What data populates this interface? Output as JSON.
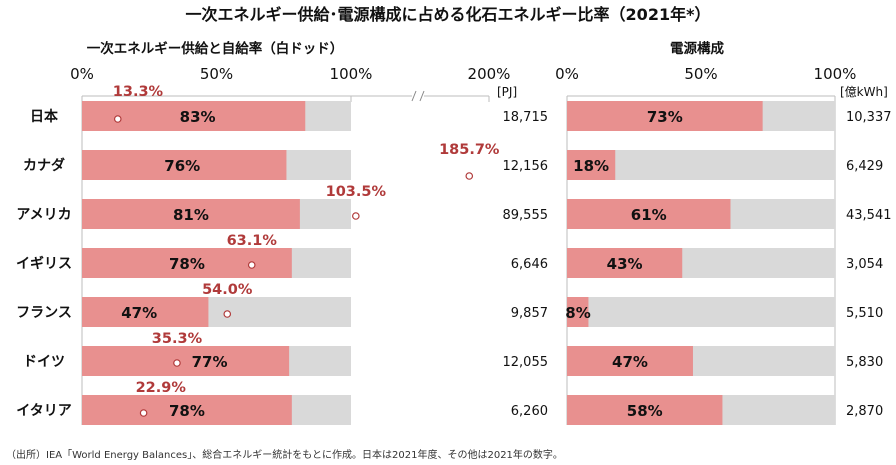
{
  "title": "一次エネルギー供給･電源構成に占める化石エネルギー比率（2021年*）",
  "note": "（出所）IEA「World Energy Balances」、総合エネルギー統計をもとに作成。日本は2021年度、その他は2021年の数字。",
  "colors": {
    "fossil_bar": "#e8908f",
    "remainder_bar": "#d9d9d9",
    "self_sufficiency_label": "#b03a3a",
    "grid": "#bdbdbd"
  },
  "chart_data": [
    {
      "type": "bar",
      "orientation": "horizontal",
      "stacked_to": 100,
      "title": "一次エネルギー供給と自給率（白ドッド）",
      "axis_ticks": [
        "0%",
        "50%",
        "100%",
        "200%"
      ],
      "axis_break": true,
      "unit_label": "[PJ]",
      "categories": [
        "日本",
        "カナダ",
        "アメリカ",
        "イギリス",
        "フランス",
        "ドイツ",
        "イタリア"
      ],
      "fossil_share": [
        83,
        76,
        81,
        78,
        47,
        77,
        78
      ],
      "fossil_share_labels": [
        "83%",
        "76%",
        "81%",
        "78%",
        "47%",
        "77%",
        "78%"
      ],
      "self_sufficiency": [
        13.3,
        185.7,
        103.5,
        63.1,
        54.0,
        35.3,
        22.9
      ],
      "self_sufficiency_labels": [
        "13.3%",
        "185.7%",
        "103.5%",
        "63.1%",
        "54.0%",
        "35.3%",
        "22.9%"
      ],
      "totals": [
        "18,715",
        "12,156",
        "89,555",
        "6,646",
        "9,857",
        "12,055",
        "6,260"
      ]
    },
    {
      "type": "bar",
      "orientation": "horizontal",
      "stacked_to": 100,
      "title": "電源構成",
      "axis_ticks": [
        "0%",
        "50%",
        "100%"
      ],
      "unit_label": "[億kWh]",
      "categories": [
        "日本",
        "カナダ",
        "アメリカ",
        "イギリス",
        "フランス",
        "ドイツ",
        "イタリア"
      ],
      "fossil_share": [
        73,
        18,
        61,
        43,
        8,
        47,
        58
      ],
      "fossil_share_labels": [
        "73%",
        "18%",
        "61%",
        "43%",
        "8%",
        "47%",
        "58%"
      ],
      "totals": [
        "10,337",
        "6,429",
        "43,541",
        "3,054",
        "5,510",
        "5,830",
        "2,870"
      ]
    }
  ]
}
